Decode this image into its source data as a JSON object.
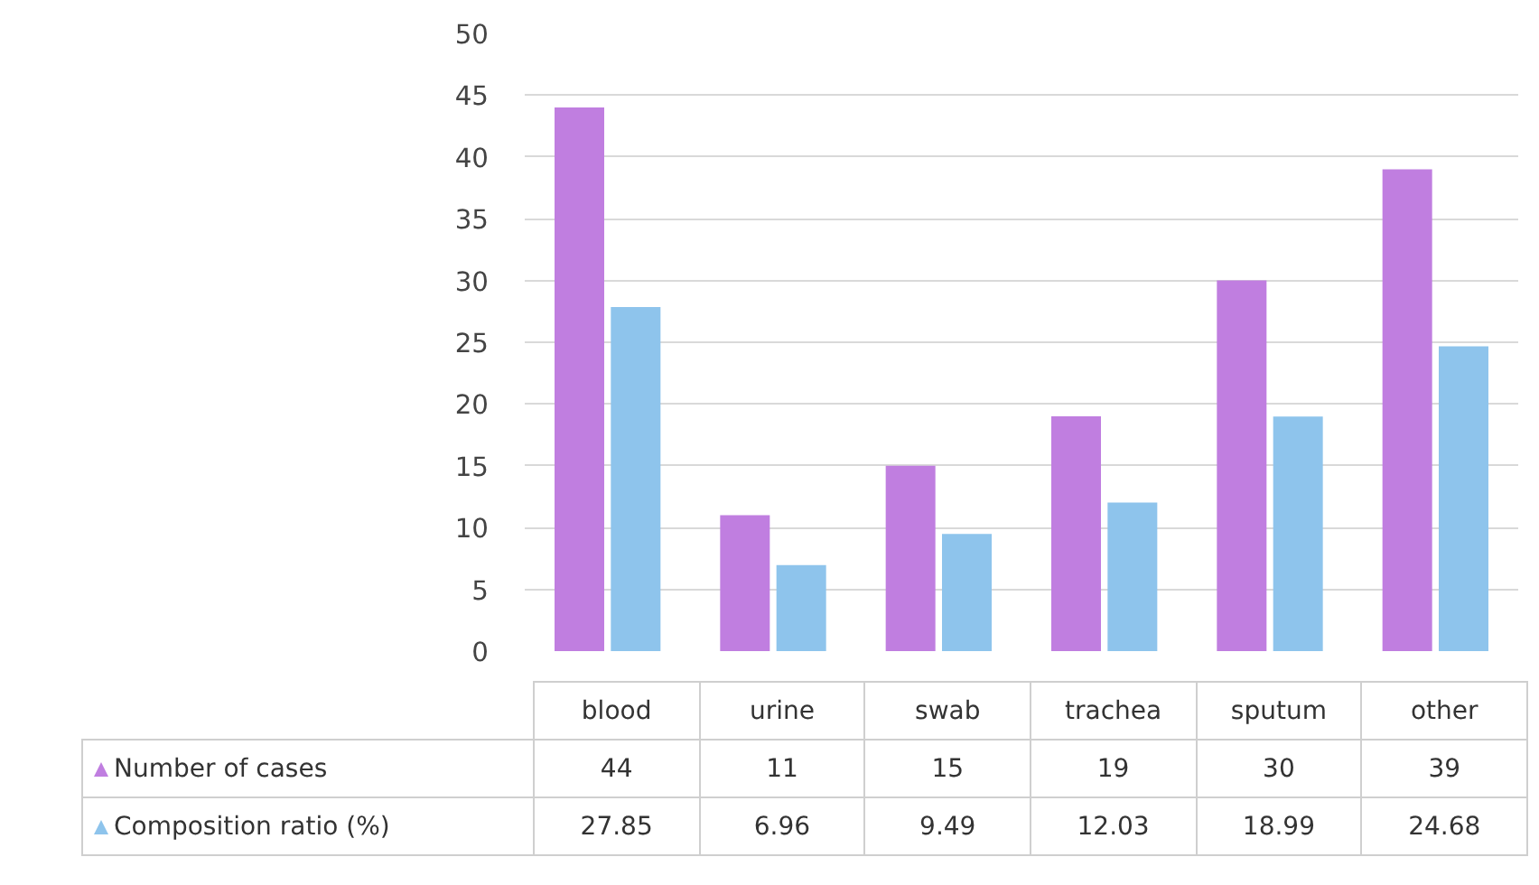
{
  "chart_data": {
    "type": "bar",
    "categories": [
      "blood",
      "urine",
      "swab",
      "trachea",
      "sputum",
      "other"
    ],
    "series": [
      {
        "name": "Number of cases",
        "color": "#c07ee0",
        "values": [
          44,
          11,
          15,
          19,
          30,
          39
        ]
      },
      {
        "name": "Composition ratio (%)",
        "color": "#8ec4ec",
        "values": [
          27.85,
          6.96,
          9.49,
          12.03,
          18.99,
          24.68
        ]
      }
    ],
    "ylim": [
      0,
      50
    ],
    "yticks": [
      0,
      5,
      10,
      15,
      20,
      25,
      30,
      35,
      40,
      45,
      50
    ],
    "grid": "y",
    "data_labels": true,
    "legend": "bottom left"
  }
}
